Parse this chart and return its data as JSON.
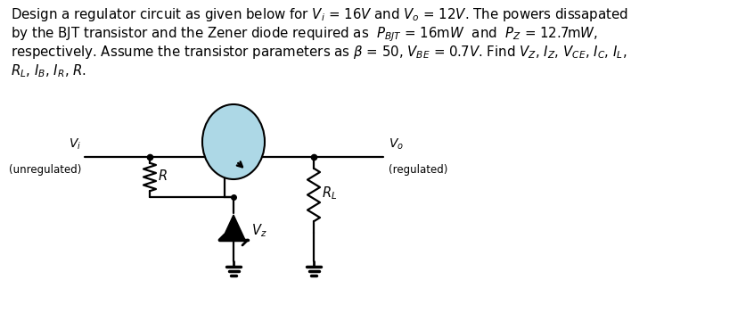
{
  "bg_color": "#ffffff",
  "text_color": "#000000",
  "line_color": "#000000",
  "transistor_fill": "#add8e6",
  "fig_width": 8.46,
  "fig_height": 3.51,
  "dpi": 100,
  "title_lines": [
    "Design a regulator circuit as given below for $V_i$ = 16$V$ and $V_o$ = 12$V$. The powers dissapated",
    "by the BJT transistor and the Zener diode required as  $P_{BJT}$ = 16m$W$  and  $P_Z$ = 12.7m$W$,",
    "respectively. Assume the transistor parameters as $\\beta$ = 50, $V_{BE}$ = 0.7$V$. Find $V_Z$, $I_Z$, $V_{CE}$, $I_C$, $I_L$,",
    "$R_L$, $I_B$, $I_R$, $R$."
  ]
}
